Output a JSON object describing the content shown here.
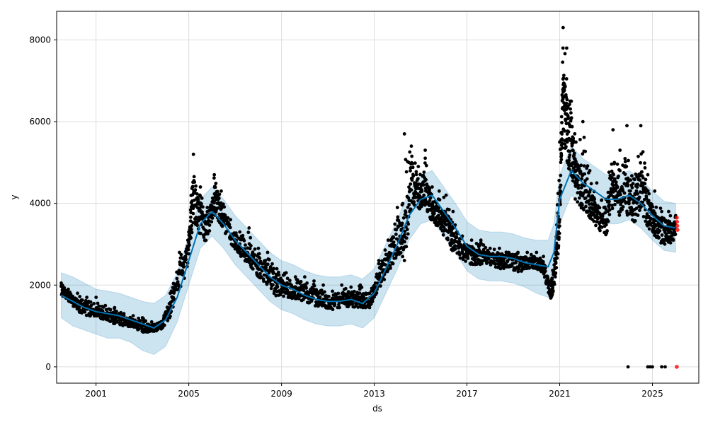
{
  "chart_data": {
    "type": "scatter",
    "title": "",
    "xlabel": "ds",
    "ylabel": "y",
    "xlim": [
      1999.3,
      2027.0
    ],
    "ylim": [
      -400,
      8700
    ],
    "x_ticks": [
      2001,
      2005,
      2009,
      2013,
      2017,
      2021,
      2025
    ],
    "y_ticks": [
      0,
      2000,
      4000,
      6000,
      8000
    ],
    "grid": true,
    "colors": {
      "observed": "#000000",
      "forecast_line": "#0072B2",
      "interval": "#0072B2",
      "new_points": "#ff0000"
    },
    "forecast": {
      "x": [
        1999.5,
        2000.0,
        2000.5,
        2001.0,
        2001.5,
        2002.0,
        2002.5,
        2003.0,
        2003.5,
        2004.0,
        2004.5,
        2005.0,
        2005.5,
        2006.0,
        2006.5,
        2007.0,
        2007.5,
        2008.0,
        2008.5,
        2009.0,
        2009.5,
        2010.0,
        2010.5,
        2011.0,
        2011.5,
        2012.0,
        2012.5,
        2013.0,
        2013.5,
        2014.0,
        2014.5,
        2015.0,
        2015.5,
        2016.0,
        2016.5,
        2017.0,
        2017.5,
        2018.0,
        2018.5,
        2019.0,
        2019.5,
        2020.0,
        2020.5,
        2020.75,
        2021.0,
        2021.5,
        2022.0,
        2022.5,
        2023.0,
        2023.5,
        2024.0,
        2024.5,
        2025.0,
        2025.5,
        2026.0
      ],
      "yhat": [
        1750,
        1600,
        1450,
        1350,
        1300,
        1250,
        1150,
        1050,
        950,
        1150,
        1700,
        2600,
        3500,
        3800,
        3500,
        3100,
        2800,
        2500,
        2200,
        2000,
        1900,
        1750,
        1650,
        1600,
        1600,
        1650,
        1550,
        1800,
        2400,
        3000,
        3700,
        4100,
        4200,
        3800,
        3400,
        2950,
        2750,
        2700,
        2700,
        2650,
        2550,
        2500,
        2450,
        2800,
        4100,
        4800,
        4500,
        4300,
        4100,
        4100,
        4200,
        4000,
        3700,
        3450,
        3400
      ],
      "lower": [
        1200,
        1000,
        900,
        800,
        700,
        700,
        600,
        400,
        300,
        500,
        1100,
        2000,
        2900,
        3200,
        2900,
        2500,
        2200,
        1900,
        1600,
        1400,
        1300,
        1150,
        1050,
        1000,
        1000,
        1050,
        950,
        1200,
        1800,
        2400,
        3100,
        3500,
        3600,
        3200,
        2800,
        2350,
        2150,
        2100,
        2100,
        2050,
        1950,
        1800,
        1700,
        2100,
        3500,
        4200,
        3900,
        3700,
        3500,
        3500,
        3600,
        3400,
        3100,
        2850,
        2800
      ],
      "upper": [
        2300,
        2200,
        2050,
        1900,
        1850,
        1800,
        1700,
        1600,
        1550,
        1750,
        2300,
        3200,
        4100,
        4400,
        4100,
        3700,
        3400,
        3100,
        2800,
        2600,
        2500,
        2350,
        2250,
        2200,
        2200,
        2250,
        2150,
        2400,
        3000,
        3600,
        4300,
        4700,
        4800,
        4400,
        4000,
        3550,
        3350,
        3300,
        3300,
        3250,
        3150,
        3100,
        3100,
        3500,
        4700,
        5400,
        5100,
        4900,
        4700,
        4700,
        4800,
        4600,
        4300,
        4050,
        4000
      ]
    },
    "observed": {
      "x": [
        1999.5,
        1999.8,
        2000.2,
        2000.6,
        2001.0,
        2001.4,
        2001.8,
        2002.2,
        2002.6,
        2003.0,
        2003.4,
        2003.8,
        2004.2,
        2004.6,
        2005.0,
        2005.2,
        2005.5,
        2005.8,
        2006.1,
        2006.4,
        2006.8,
        2007.2,
        2007.6,
        2008.0,
        2008.4,
        2008.8,
        2009.2,
        2009.6,
        2010.0,
        2010.4,
        2010.8,
        2011.2,
        2011.6,
        2012.0,
        2012.4,
        2012.8,
        2013.2,
        2013.6,
        2014.0,
        2014.3,
        2014.6,
        2014.9,
        2015.2,
        2015.5,
        2015.8,
        2016.1,
        2016.4,
        2016.8,
        2017.2,
        2017.6,
        2018.0,
        2018.4,
        2018.8,
        2019.2,
        2019.6,
        2020.0,
        2020.3,
        2020.6,
        2020.8,
        2021.0,
        2021.15,
        2021.3,
        2021.5,
        2021.7,
        2022.0,
        2022.3,
        2022.6,
        2023.0,
        2023.3,
        2023.6,
        2023.9,
        2024.2,
        2024.5,
        2024.8,
        2025.1,
        2025.4,
        2025.7,
        2026.0
      ],
      "y": [
        1950,
        1750,
        1550,
        1450,
        1350,
        1300,
        1250,
        1150,
        1100,
        1000,
        950,
        1000,
        1500,
        2300,
        2900,
        4500,
        3800,
        3400,
        4200,
        3900,
        3300,
        2900,
        2700,
        2500,
        2300,
        2100,
        1950,
        1900,
        1850,
        1800,
        1650,
        1600,
        1700,
        1650,
        1700,
        1550,
        2200,
        2700,
        3400,
        3200,
        4600,
        4300,
        4500,
        3900,
        3800,
        3600,
        3200,
        2900,
        2800,
        2750,
        2700,
        2650,
        2700,
        2650,
        2600,
        2600,
        2500,
        1800,
        2400,
        3800,
        7000,
        6200,
        5500,
        4800,
        4300,
        4100,
        3900,
        3500,
        4600,
        4200,
        4400,
        4000,
        4800,
        3900,
        3500,
        3400,
        3300,
        3400
      ],
      "hi": [
        2050,
        1900,
        1800,
        1700,
        1700,
        1500,
        1450,
        1300,
        1250,
        1200,
        1100,
        1100,
        1800,
        2800,
        3300,
        5200,
        4400,
        3900,
        4700,
        4300,
        3600,
        3300,
        3400,
        2900,
        2800,
        2400,
        2300,
        2200,
        2200,
        2100,
        2000,
        1850,
        2000,
        1950,
        2000,
        1800,
        2600,
        3100,
        3900,
        5700,
        5400,
        4900,
        5300,
        4400,
        4300,
        4200,
        3800,
        3200,
        3100,
        3100,
        2900,
        2900,
        2800,
        2800,
        2800,
        2800,
        2700,
        2100,
        2800,
        5500,
        8300,
        7800,
        6500,
        5500,
        6000,
        4800,
        4500,
        4100,
        5800,
        5300,
        5900,
        4600,
        5900,
        4700,
        4300,
        3800,
        3800,
        3700
      ],
      "lo": [
        1750,
        1600,
        1350,
        1250,
        1200,
        1150,
        1050,
        1000,
        950,
        850,
        850,
        900,
        1200,
        1900,
        2400,
        3600,
        3200,
        3000,
        3700,
        3400,
        3000,
        2700,
        2500,
        2200,
        2000,
        1700,
        1700,
        1650,
        1600,
        1500,
        1450,
        1400,
        1450,
        1450,
        1450,
        1450,
        1900,
        2300,
        2700,
        2600,
        3800,
        3800,
        3900,
        3500,
        3400,
        3100,
        2800,
        2600,
        2500,
        2500,
        2500,
        2400,
        2400,
        2300,
        2400,
        2400,
        2300,
        1600,
        2000,
        3200,
        5800,
        5000,
        4600,
        4000,
        3800,
        3600,
        3400,
        3200,
        3800,
        3700,
        3700,
        3500,
        3800,
        3300,
        3200,
        3000,
        3000,
        3100
      ]
    },
    "outliers": {
      "x": [
        2023.95,
        2024.8,
        2024.9,
        2025.0,
        2025.4,
        2025.55
      ],
      "y": [
        0,
        0,
        0,
        0,
        0,
        0
      ]
    },
    "new_points": {
      "x": [
        2026.05,
        2026.06,
        2026.07,
        2026.08,
        2026.05
      ],
      "y": [
        3650,
        3550,
        3450,
        3350,
        0
      ]
    }
  }
}
